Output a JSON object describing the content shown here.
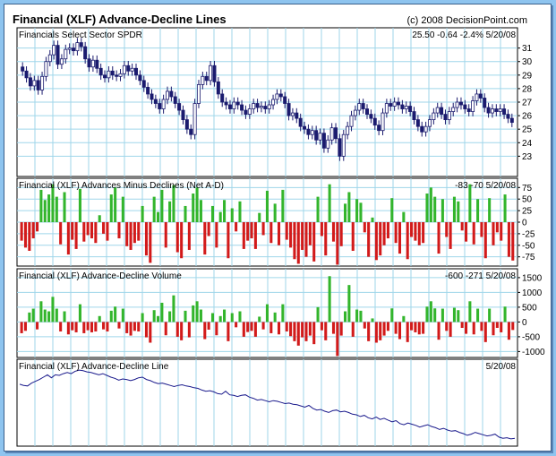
{
  "title": "Financial (XLF) Advance-Decline Lines",
  "copyright": "(c) 2008 DecisionPoint.com",
  "colors": {
    "background": "#8ec4ef",
    "grid": "#9fd6ea",
    "up_bar": "#33b52c",
    "down_bar": "#d21a1a",
    "price": "#1b1b6e",
    "line": "#1a1a8c"
  },
  "chart_data": [
    {
      "type": "candlestick",
      "title": "Financials Select Sector SPDR",
      "readout": "25.50  -0.64  -2.4%  5/20/08",
      "ylim": [
        21.5,
        32.5
      ],
      "yticks": [
        23,
        24,
        25,
        26,
        27,
        28,
        29,
        30,
        31
      ],
      "close": [
        29.3,
        28.8,
        28.2,
        28.6,
        27.9,
        28.9,
        30.0,
        30.5,
        31.2,
        29.8,
        30.2,
        30.9,
        31.0,
        30.8,
        31.4,
        31.1,
        30.2,
        29.6,
        30.1,
        29.5,
        29.0,
        28.8,
        29.3,
        29.0,
        28.9,
        29.1,
        29.7,
        29.3,
        29.5,
        29.0,
        28.6,
        28.1,
        27.6,
        27.2,
        26.9,
        26.5,
        27.2,
        27.8,
        27.4,
        26.9,
        26.4,
        25.7,
        25.0,
        24.6,
        26.9,
        28.3,
        28.9,
        28.6,
        29.7,
        28.5,
        27.6,
        27.0,
        26.8,
        26.5,
        27.0,
        26.8,
        26.4,
        26.1,
        26.5,
        26.9,
        26.6,
        26.7,
        26.5,
        26.8,
        27.2,
        27.6,
        27.4,
        26.9,
        26.0,
        26.2,
        25.8,
        25.2,
        25.0,
        24.6,
        24.9,
        24.2,
        24.7,
        23.6,
        24.2,
        25.1,
        24.3,
        23.0,
        24.6,
        25.2,
        26.0,
        26.4,
        26.9,
        26.5,
        26.1,
        25.8,
        25.3,
        24.9,
        26.2,
        26.9,
        26.7,
        27.0,
        26.8,
        26.5,
        26.7,
        26.3,
        25.7,
        25.2,
        24.8,
        25.2,
        25.7,
        26.2,
        26.6,
        26.1,
        25.7,
        26.3,
        26.6,
        27.0,
        26.8,
        26.5,
        26.3,
        27.1,
        27.6,
        27.3,
        26.6,
        26.2,
        26.5,
        26.3,
        26.5,
        26.1,
        25.8,
        25.5
      ],
      "volume_readout": ""
    },
    {
      "type": "bar",
      "title": "Financial (XLF) Advances Minus Declines (Net A-D)",
      "readout": "-83  -70  5/20/08",
      "ylim": [
        -95,
        95
      ],
      "yticks": [
        75,
        50,
        25,
        0,
        -25,
        -50,
        -75
      ],
      "values": [
        -40,
        -55,
        -62,
        -35,
        -20,
        70,
        48,
        60,
        82,
        55,
        -48,
        65,
        -70,
        -38,
        -58,
        72,
        -42,
        -28,
        -35,
        -45,
        15,
        -25,
        -40,
        60,
        75,
        -35,
        55,
        -52,
        -60,
        -45,
        -40,
        35,
        -72,
        -88,
        55,
        22,
        70,
        -55,
        45,
        80,
        -65,
        -78,
        35,
        -60,
        62,
        75,
        48,
        -70,
        -30,
        35,
        -55,
        22,
        48,
        -78,
        30,
        -20,
        45,
        -58,
        -40,
        -35,
        -58,
        20,
        -28,
        68,
        -45,
        40,
        -50,
        70,
        -38,
        -55,
        -80,
        -90,
        -60,
        -75,
        -50,
        -85,
        55,
        -30,
        -72,
        82,
        -42,
        -92,
        -52,
        40,
        65,
        -62,
        50,
        42,
        -22,
        -75,
        10,
        -82,
        -72,
        -50,
        -35,
        52,
        -45,
        -68,
        22,
        -80,
        -32,
        -40,
        -50,
        -45,
        62,
        75,
        55,
        -68,
        50,
        -32,
        -58,
        55,
        45,
        -18,
        -42,
        82,
        -48,
        50,
        -32,
        -78,
        52,
        -50,
        -22,
        -40,
        60,
        -75,
        -83
      ],
      "readout_ok": true
    },
    {
      "type": "bar",
      "title": "Financial (XLF) Advance-Decline Volume",
      "readout": "-600  -271  5/20/08",
      "ylim": [
        -1200,
        1800
      ],
      "yticks": [
        1500,
        1000,
        500,
        0,
        -500,
        -1000
      ],
      "values": [
        -380,
        -300,
        320,
        450,
        -250,
        700,
        420,
        360,
        850,
        450,
        -320,
        360,
        -420,
        -280,
        -350,
        600,
        -380,
        -280,
        -350,
        -320,
        200,
        -250,
        -320,
        380,
        520,
        -220,
        450,
        -380,
        -460,
        -300,
        -320,
        300,
        -520,
        -700,
        400,
        200,
        650,
        -450,
        360,
        900,
        -500,
        -620,
        380,
        -520,
        560,
        700,
        420,
        -580,
        -260,
        300,
        -450,
        200,
        420,
        -650,
        300,
        -180,
        360,
        -500,
        -340,
        -300,
        -500,
        180,
        -250,
        600,
        -380,
        320,
        -420,
        600,
        -320,
        -480,
        -650,
        -800,
        -520,
        -650,
        -460,
        -750,
        500,
        -280,
        -620,
        1550,
        -400,
        -1150,
        -460,
        360,
        1250,
        -500,
        420,
        380,
        -220,
        -650,
        120,
        -700,
        -620,
        -460,
        -300,
        460,
        -400,
        -580,
        200,
        -680,
        -280,
        -350,
        -420,
        -400,
        520,
        700,
        460,
        -600,
        450,
        -300,
        -500,
        480,
        400,
        -200,
        -400,
        700,
        -420,
        450,
        -300,
        -680,
        450,
        -450,
        -200,
        -350,
        520,
        -600,
        -271
      ]
    },
    {
      "type": "line",
      "title": "Financial (XLF) Advance-Decline Line",
      "readout": "5/20/08",
      "values": [
        540,
        520,
        510,
        560,
        590,
        620,
        660,
        700,
        650,
        700,
        690,
        720,
        740,
        720,
        760,
        780,
        770,
        750,
        740,
        720,
        700,
        720,
        690,
        660,
        640,
        610,
        630,
        620,
        600,
        620,
        650,
        660,
        620,
        600,
        570,
        550,
        560,
        540,
        520,
        500,
        520,
        530,
        510,
        500,
        480,
        470,
        440,
        420,
        430,
        410,
        380,
        370,
        420,
        360,
        350,
        330,
        350,
        360,
        320,
        300,
        270,
        280,
        260,
        240,
        260,
        250,
        230,
        210,
        220,
        200,
        190,
        170,
        150,
        180,
        130,
        100,
        110,
        80,
        60,
        90,
        100,
        70,
        80,
        60,
        30,
        20,
        -10,
        10,
        -30,
        -50,
        -20,
        -60,
        -40,
        -70,
        -100,
        -80,
        -130,
        -150,
        -120,
        -140,
        -160,
        -190,
        -170,
        -150,
        -180,
        -200,
        -230,
        -210,
        -240,
        -260,
        -250,
        -280,
        -300,
        -330,
        -310,
        -280,
        -300,
        -320,
        -340,
        -330,
        -310,
        -360,
        -380,
        -370,
        -390,
        -380
      ]
    }
  ]
}
